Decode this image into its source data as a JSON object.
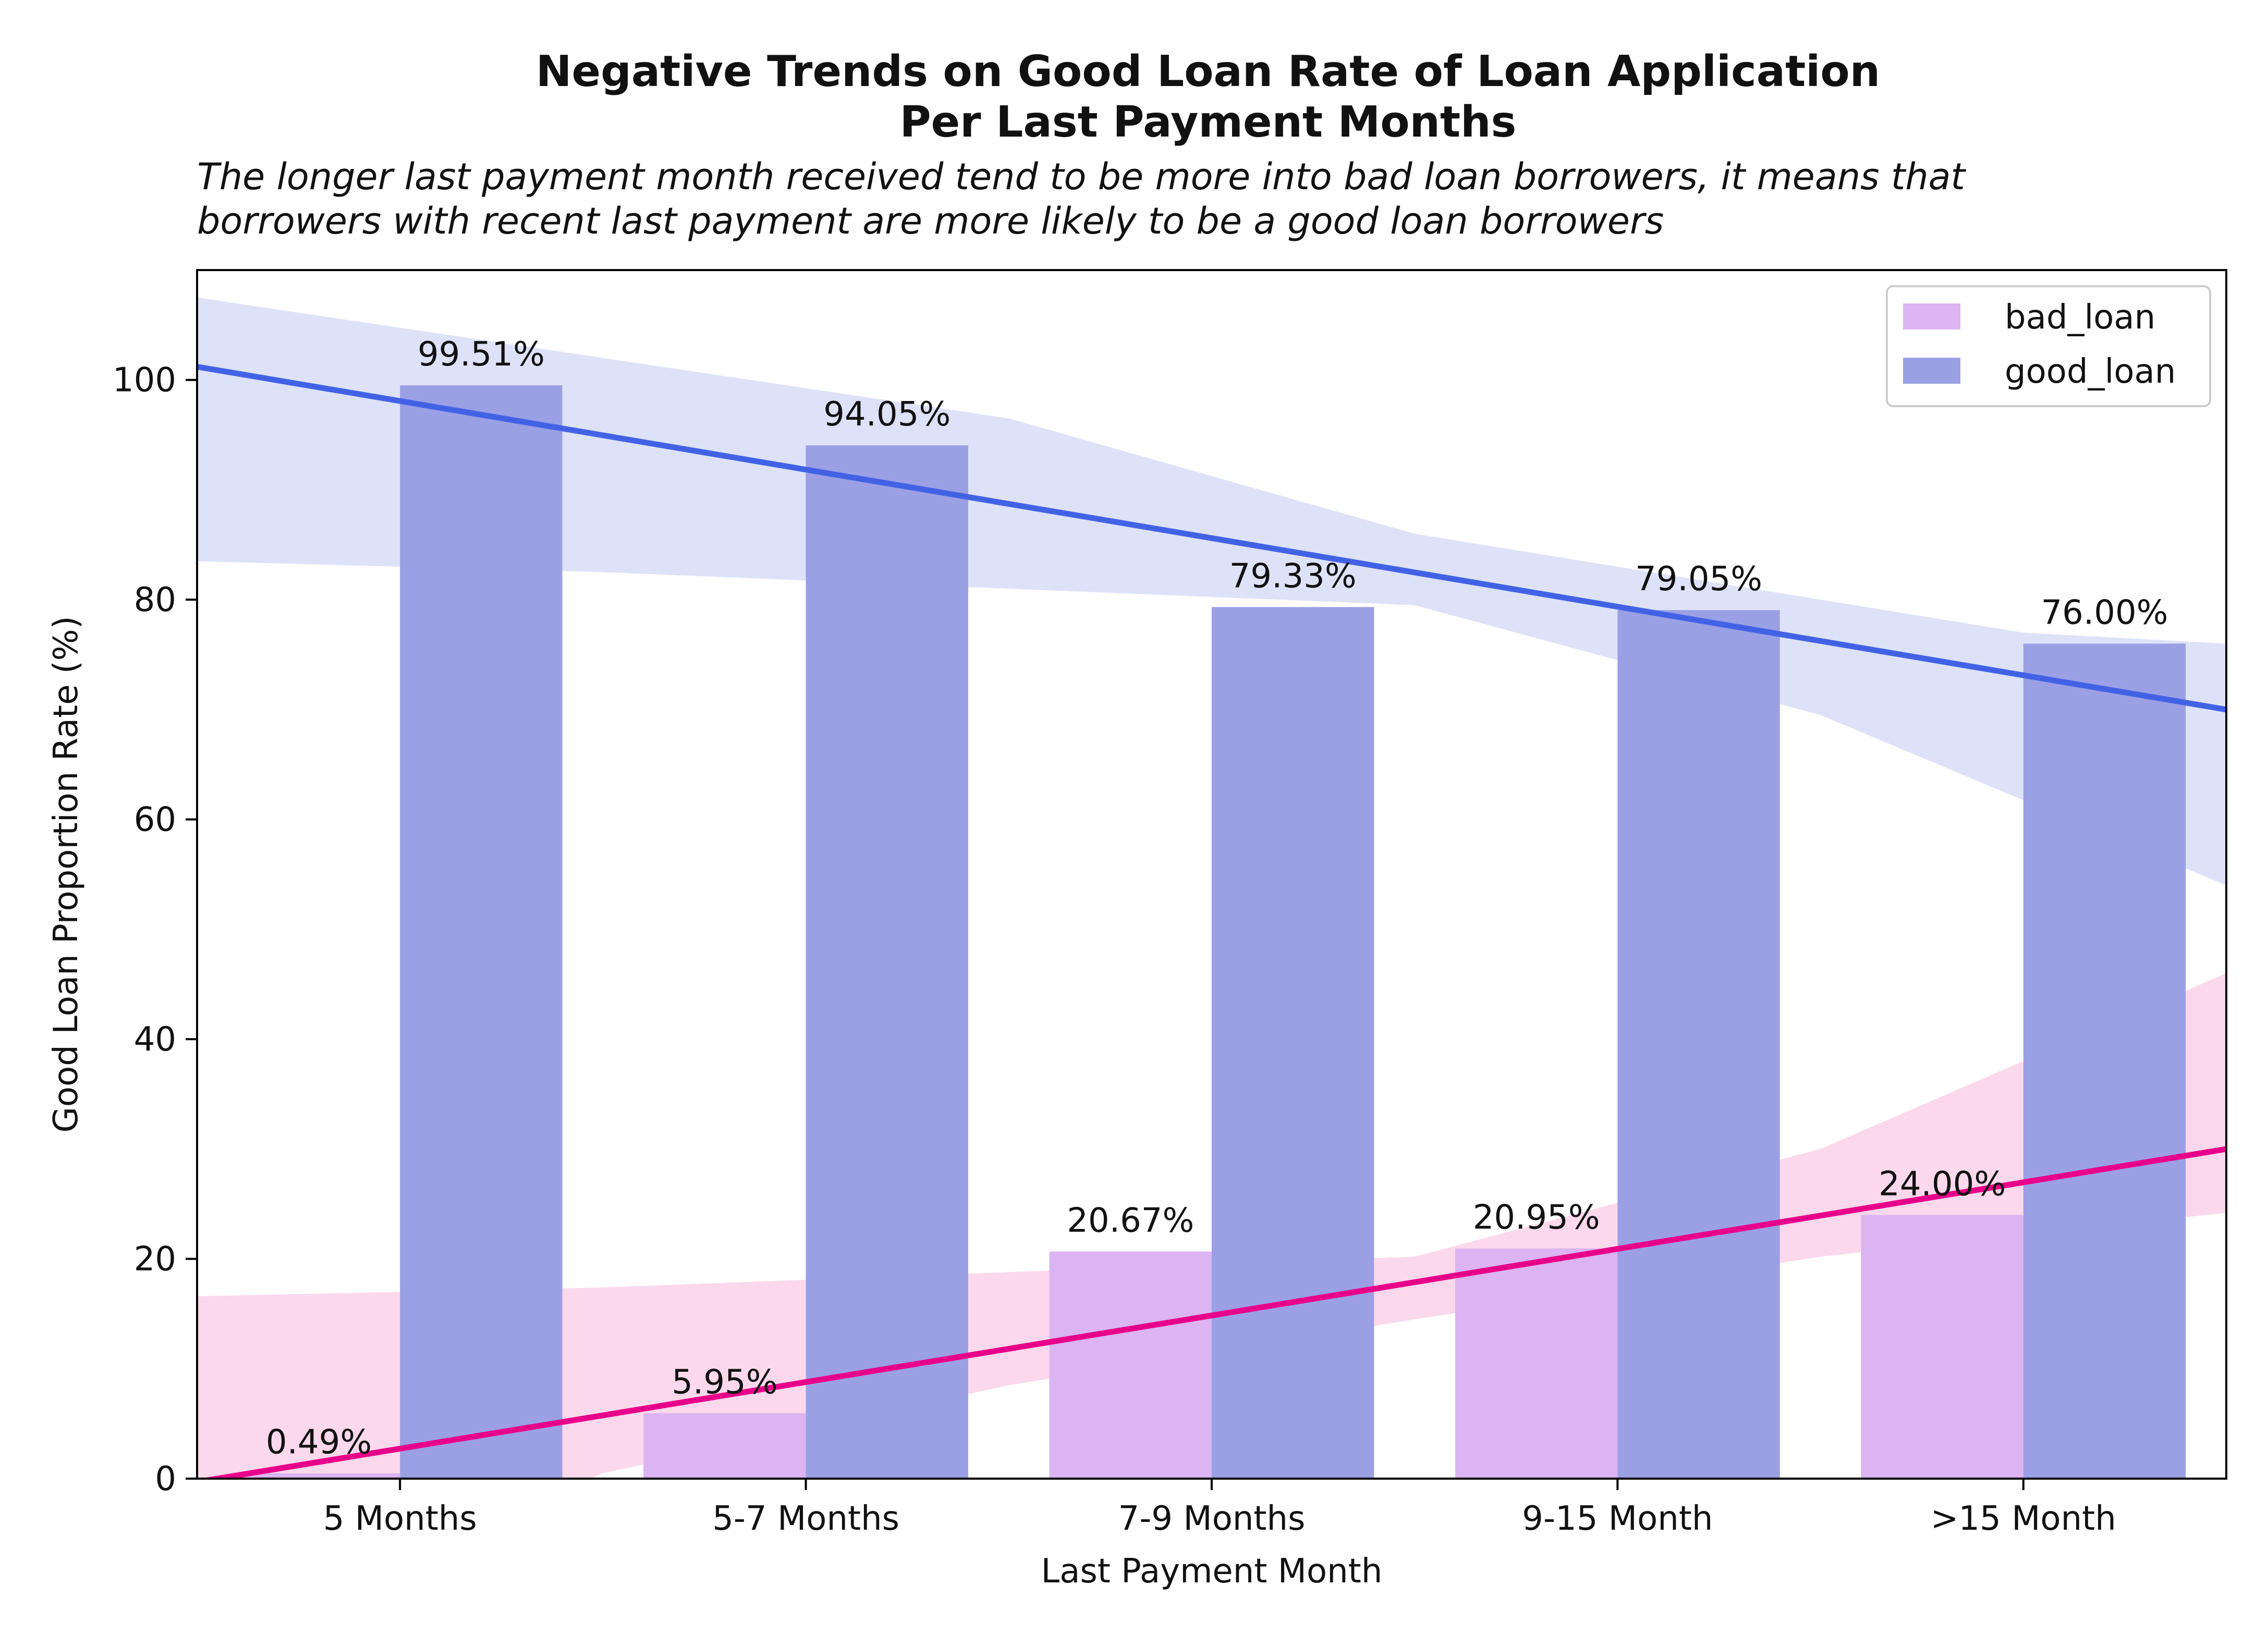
{
  "chart_data": {
    "type": "bar",
    "title_lines": [
      "Negative Trends on Good Loan Rate of Loan Application",
      "Per Last Payment Months"
    ],
    "subtitle_lines": [
      "The longer last payment month received tend to be more into bad loan borrowers, it means that",
      "borrowers with recent last payment are more likely to be a good loan borrowers"
    ],
    "xlabel": "Last Payment Month",
    "ylabel": "Good Loan Proportion Rate (%)",
    "categories": [
      "5 Months",
      "5-7 Months",
      "7-9 Months",
      "9-15 Month",
      ">15 Month"
    ],
    "ylim": [
      0,
      110
    ],
    "yticks": [
      0,
      20,
      40,
      60,
      80,
      100
    ],
    "series": [
      {
        "name": "bad_loan",
        "color": "#dbb4f1",
        "values": [
          0.49,
          5.95,
          20.67,
          20.95,
          24.0
        ],
        "labels": [
          "0.49%",
          "5.95%",
          "20.67%",
          "20.95%",
          "24.00%"
        ]
      },
      {
        "name": "good_loan",
        "color": "#9ba0e5",
        "values": [
          99.51,
          94.05,
          79.33,
          79.05,
          76.0
        ],
        "labels": [
          "99.51%",
          "94.05%",
          "79.33%",
          "79.05%",
          "76.00%"
        ]
      }
    ],
    "trendlines": [
      {
        "series": "bad_loan",
        "color": "#e8008a",
        "band_color": "#f7b8dc",
        "x": [
          -0.5,
          4.5
        ],
        "y": [
          -0.3,
          30.0
        ],
        "ci_upper": [
          [
            -0.5,
            16.6
          ],
          [
            0.5,
            17.4
          ],
          [
            1.5,
            18.8
          ],
          [
            2.5,
            20.2
          ],
          [
            3.5,
            30.0
          ],
          [
            4.5,
            46.0
          ]
        ],
        "ci_lower": [
          [
            -0.5,
            -16.6
          ],
          [
            0.5,
            0.5
          ],
          [
            1.5,
            8.5
          ],
          [
            2.5,
            14.5
          ],
          [
            3.5,
            20.2
          ],
          [
            4.5,
            24.2
          ]
        ]
      },
      {
        "series": "good_loan",
        "color": "#4262e6",
        "band_color": "#c3cbf3",
        "x": [
          -0.5,
          4.5
        ],
        "y": [
          101.2,
          70.0
        ],
        "ci_upper": [
          [
            -0.5,
            107.5
          ],
          [
            1.5,
            96.5
          ],
          [
            2.5,
            86.0
          ],
          [
            4.0,
            77.0
          ],
          [
            4.5,
            76.0
          ]
        ],
        "ci_lower": [
          [
            -0.5,
            83.5
          ],
          [
            0.5,
            82.5
          ],
          [
            1.5,
            81.0
          ],
          [
            2.5,
            79.5
          ],
          [
            3.5,
            69.5
          ],
          [
            4.5,
            54.0
          ]
        ]
      }
    ],
    "legend": {
      "position": "top-right",
      "entries": [
        "bad_loan",
        "good_loan"
      ]
    },
    "grid": false
  }
}
